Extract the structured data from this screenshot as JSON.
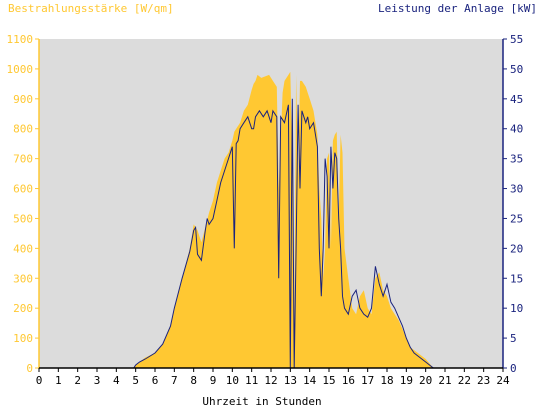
{
  "chart_data": {
    "type": "area",
    "left_axis_title": "Bestrahlungsstärke [W/qm]",
    "right_axis_title": "Leistung der Anlage [kW]",
    "xlabel": "Uhrzeit in Stunden",
    "xlim": [
      0,
      24
    ],
    "x_ticks": [
      "0",
      "1",
      "2",
      "3",
      "4",
      "5",
      "6",
      "7",
      "8",
      "9",
      "10",
      "11",
      "12",
      "13",
      "14",
      "15",
      "16",
      "17",
      "18",
      "19",
      "20",
      "21",
      "22",
      "23",
      "24"
    ],
    "ylim_left": [
      0,
      1100
    ],
    "y_ticks_left": [
      "0",
      "100",
      "200",
      "300",
      "400",
      "500",
      "600",
      "700",
      "800",
      "900",
      "1000",
      "1100"
    ],
    "ylim_right": [
      0,
      55
    ],
    "y_ticks_right": [
      "0",
      "5",
      "10",
      "15",
      "20",
      "25",
      "30",
      "35",
      "40",
      "45",
      "50",
      "55"
    ],
    "grid": false,
    "colors": {
      "plot_bg": "#dcdcdc",
      "irradiance": "#ffc832",
      "power": "#1a237e",
      "left_axis": "#ffc832",
      "right_axis": "#1a237e"
    },
    "series": [
      {
        "name": "Bestrahlungsstärke [W/qm]",
        "axis": "left",
        "x": [
          0,
          4.9,
          5.0,
          5.2,
          5.5,
          6.0,
          6.4,
          6.8,
          7.0,
          7.4,
          7.8,
          8.0,
          8.2,
          8.4,
          8.6,
          8.8,
          9.0,
          9.2,
          9.4,
          9.6,
          9.8,
          10.0,
          10.1,
          10.2,
          10.4,
          10.6,
          10.8,
          11.0,
          11.1,
          11.2,
          11.3,
          11.5,
          11.7,
          11.9,
          12.1,
          12.3,
          12.4,
          12.6,
          12.7,
          12.9,
          13.0,
          13.1,
          13.2,
          13.3,
          13.4,
          13.5,
          13.6,
          13.8,
          13.9,
          14.0,
          14.2,
          14.4,
          14.5,
          14.6,
          14.7,
          14.8,
          14.9,
          15.0,
          15.1,
          15.2,
          15.3,
          15.4,
          15.5,
          15.6,
          15.7,
          15.8,
          16.0,
          16.2,
          16.4,
          16.6,
          16.8,
          17.0,
          17.2,
          17.4,
          17.6,
          17.8,
          18.0,
          18.2,
          18.4,
          18.6,
          18.8,
          19.0,
          19.2,
          19.4,
          19.6,
          19.8,
          20.0,
          20.2,
          20.4,
          24
        ],
        "values": [
          0,
          0,
          10,
          20,
          35,
          50,
          80,
          140,
          200,
          300,
          400,
          480,
          460,
          420,
          470,
          520,
          560,
          620,
          660,
          700,
          720,
          760,
          790,
          800,
          820,
          860,
          880,
          930,
          950,
          960,
          980,
          970,
          975,
          980,
          960,
          940,
          600,
          920,
          960,
          980,
          990,
          700,
          100,
          980,
          640,
          960,
          960,
          940,
          920,
          900,
          860,
          780,
          600,
          500,
          300,
          400,
          700,
          720,
          400,
          760,
          780,
          790,
          500,
          780,
          720,
          400,
          300,
          200,
          180,
          240,
          260,
          200,
          180,
          300,
          320,
          260,
          240,
          200,
          180,
          160,
          130,
          100,
          70,
          60,
          50,
          40,
          30,
          15,
          0,
          0
        ]
      },
      {
        "name": "Leistung der Anlage [kW]",
        "axis": "right",
        "x": [
          0,
          4.9,
          5.0,
          5.2,
          5.5,
          6.0,
          6.4,
          6.8,
          7.0,
          7.4,
          7.8,
          8.0,
          8.1,
          8.2,
          8.4,
          8.6,
          8.7,
          8.8,
          9.0,
          9.2,
          9.4,
          9.6,
          9.8,
          10.0,
          10.1,
          10.2,
          10.3,
          10.4,
          10.6,
          10.8,
          11.0,
          11.1,
          11.2,
          11.4,
          11.6,
          11.8,
          12.0,
          12.1,
          12.3,
          12.4,
          12.5,
          12.7,
          12.9,
          13.0,
          13.1,
          13.2,
          13.3,
          13.4,
          13.5,
          13.6,
          13.8,
          13.9,
          14.0,
          14.2,
          14.4,
          14.5,
          14.6,
          14.7,
          14.8,
          14.9,
          15.0,
          15.1,
          15.2,
          15.3,
          15.4,
          15.5,
          15.6,
          15.7,
          15.8,
          16.0,
          16.2,
          16.4,
          16.6,
          16.8,
          17.0,
          17.2,
          17.4,
          17.6,
          17.8,
          18.0,
          18.2,
          18.4,
          18.6,
          18.8,
          19.0,
          19.2,
          19.4,
          19.6,
          19.8,
          20.0,
          20.2,
          20.4,
          24
        ],
        "values": [
          0,
          0,
          0.5,
          1.0,
          1.5,
          2.5,
          4.0,
          7.0,
          10.0,
          15.0,
          19.5,
          23.0,
          23.5,
          19.0,
          18.0,
          23.0,
          25.0,
          24.0,
          25.0,
          28.0,
          31.0,
          33.0,
          35.0,
          37.0,
          20.0,
          37.5,
          38.0,
          40.0,
          41.0,
          42.0,
          40.0,
          40.0,
          42.0,
          43.0,
          42.0,
          43.0,
          41.0,
          43.0,
          42.0,
          15.0,
          42.0,
          41.0,
          44.0,
          0.0,
          45.0,
          0.0,
          20.0,
          44.0,
          30.0,
          43.0,
          41.0,
          42.0,
          40.0,
          41.0,
          37.0,
          20.0,
          12.0,
          20.0,
          35.0,
          32.0,
          20.0,
          37.0,
          30.0,
          36.0,
          35.0,
          25.0,
          20.0,
          12.0,
          10.0,
          9.0,
          12.0,
          13.0,
          10.0,
          9.0,
          8.5,
          10.0,
          17.0,
          14.0,
          12.0,
          14.0,
          11.0,
          10.0,
          8.5,
          7.0,
          5.0,
          3.5,
          2.5,
          2.0,
          1.5,
          1.0,
          0.5,
          0.0,
          0.0
        ]
      }
    ]
  }
}
